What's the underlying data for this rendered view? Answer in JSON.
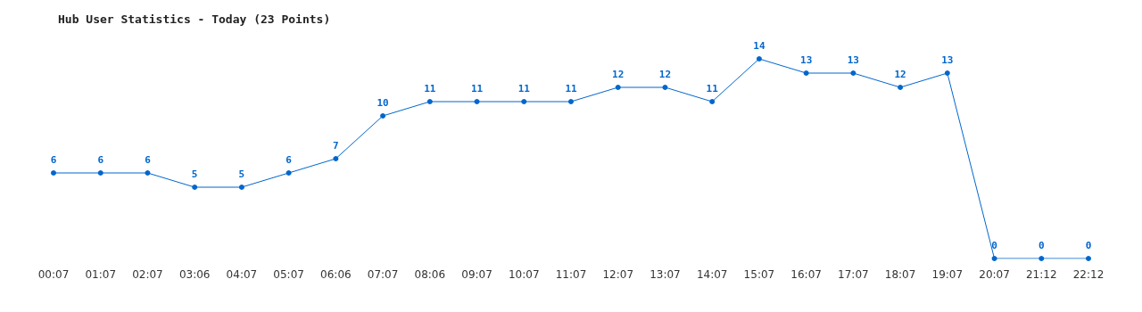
{
  "chart_data": {
    "type": "line",
    "title": "Hub User Statistics - Today (23 Points)",
    "categories": [
      "00:07",
      "01:07",
      "02:07",
      "03:06",
      "04:07",
      "05:07",
      "06:06",
      "07:07",
      "08:06",
      "09:07",
      "10:07",
      "11:07",
      "12:07",
      "13:07",
      "14:07",
      "15:07",
      "16:07",
      "17:07",
      "18:07",
      "19:07",
      "20:07",
      "21:12",
      "22:12"
    ],
    "series": [
      {
        "color": "#0066cc",
        "values": [
          6,
          6,
          6,
          5,
          5,
          6,
          7,
          10,
          11,
          11,
          11,
          11,
          12,
          12,
          11,
          14,
          13,
          13,
          12,
          13,
          0,
          0,
          0
        ]
      }
    ],
    "data_labels": true,
    "marker": "circle",
    "line_style": "solid",
    "tick_labels": "x"
  }
}
